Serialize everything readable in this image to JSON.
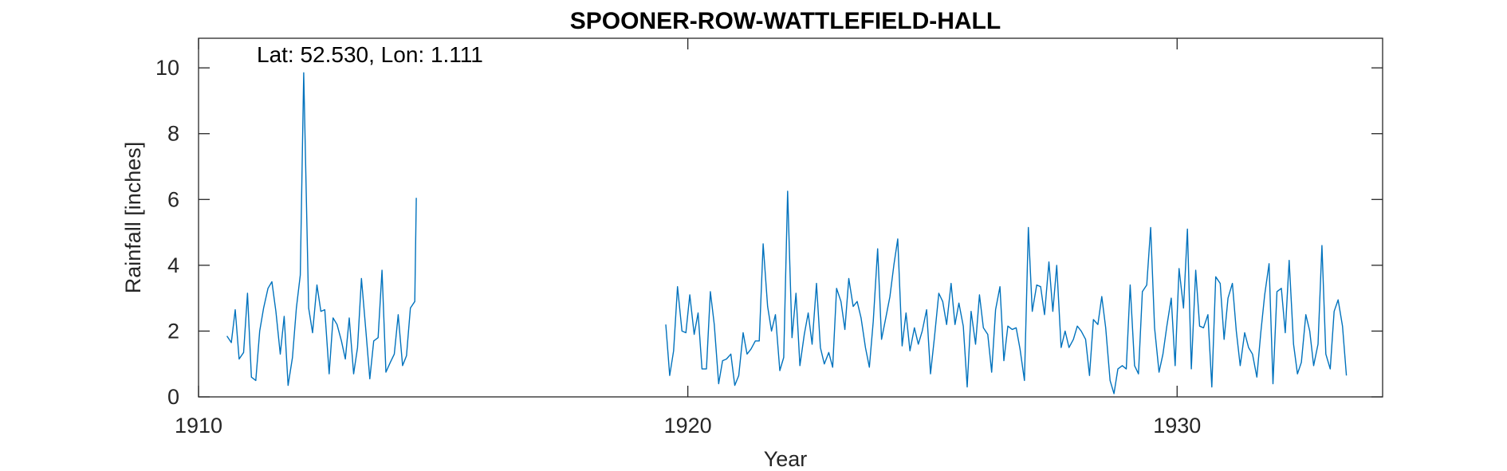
{
  "chart_data": {
    "type": "line",
    "title": "SPOONER-ROW-WATTLEFIELD-HALL",
    "annotation": "Lat: 52.530, Lon: 1.111",
    "xlabel": "Year",
    "ylabel": "Rainfall [inches]",
    "xlim": [
      1910,
      1934.2
    ],
    "ylim": [
      0,
      10.9
    ],
    "xticks": [
      1910,
      1920,
      1930
    ],
    "yticks": [
      0,
      2,
      4,
      6,
      8,
      10
    ],
    "xtick_labels": [
      "1910",
      "1920",
      "1930"
    ],
    "ytick_labels": [
      "0",
      "2",
      "4",
      "6",
      "8",
      "10"
    ],
    "grid": false,
    "box": true,
    "series": [
      {
        "color": "#0072BD",
        "segments": [
          [
            [
              1910.58,
              1.85
            ],
            [
              1910.67,
              1.65
            ],
            [
              1910.75,
              2.65
            ],
            [
              1910.83,
              1.15
            ],
            [
              1910.92,
              1.35
            ],
            [
              1911.0,
              3.15
            ],
            [
              1911.08,
              0.6
            ],
            [
              1911.17,
              0.5
            ],
            [
              1911.25,
              2.0
            ],
            [
              1911.33,
              2.7
            ],
            [
              1911.42,
              3.3
            ],
            [
              1911.5,
              3.5
            ],
            [
              1911.58,
              2.6
            ],
            [
              1911.67,
              1.3
            ],
            [
              1911.75,
              2.45
            ],
            [
              1911.83,
              0.35
            ],
            [
              1911.92,
              1.2
            ],
            [
              1912.0,
              2.7
            ],
            [
              1912.08,
              3.7
            ],
            [
              1912.15,
              9.85
            ],
            [
              1912.25,
              2.7
            ],
            [
              1912.33,
              1.95
            ],
            [
              1912.42,
              3.4
            ],
            [
              1912.5,
              2.6
            ],
            [
              1912.58,
              2.65
            ],
            [
              1912.67,
              0.7
            ],
            [
              1912.75,
              2.4
            ],
            [
              1912.83,
              2.2
            ],
            [
              1912.92,
              1.7
            ],
            [
              1913.0,
              1.15
            ],
            [
              1913.08,
              2.4
            ],
            [
              1913.17,
              0.7
            ],
            [
              1913.25,
              1.5
            ],
            [
              1913.33,
              3.6
            ],
            [
              1913.42,
              2.0
            ],
            [
              1913.5,
              0.55
            ],
            [
              1913.58,
              1.7
            ],
            [
              1913.67,
              1.8
            ],
            [
              1913.75,
              3.85
            ],
            [
              1913.83,
              0.75
            ],
            [
              1913.92,
              1.05
            ],
            [
              1914.0,
              1.3
            ],
            [
              1914.08,
              2.5
            ],
            [
              1914.17,
              0.95
            ],
            [
              1914.25,
              1.25
            ],
            [
              1914.33,
              2.7
            ],
            [
              1914.42,
              2.9
            ],
            [
              1914.45,
              6.05
            ]
          ],
          [
            [
              1919.55,
              2.2
            ],
            [
              1919.63,
              0.65
            ],
            [
              1919.71,
              1.4
            ],
            [
              1919.79,
              3.35
            ],
            [
              1919.88,
              2.0
            ],
            [
              1919.96,
              1.95
            ],
            [
              1920.04,
              3.1
            ],
            [
              1920.13,
              1.9
            ],
            [
              1920.21,
              2.55
            ],
            [
              1920.29,
              0.85
            ],
            [
              1920.38,
              0.85
            ],
            [
              1920.46,
              3.2
            ],
            [
              1920.54,
              2.2
            ],
            [
              1920.63,
              0.4
            ],
            [
              1920.71,
              1.1
            ],
            [
              1920.79,
              1.15
            ],
            [
              1920.88,
              1.3
            ],
            [
              1920.96,
              0.35
            ],
            [
              1921.04,
              0.65
            ],
            [
              1921.13,
              1.95
            ],
            [
              1921.21,
              1.3
            ],
            [
              1921.29,
              1.45
            ],
            [
              1921.38,
              1.7
            ],
            [
              1921.46,
              1.7
            ],
            [
              1921.54,
              4.65
            ],
            [
              1921.63,
              2.75
            ],
            [
              1921.71,
              2.0
            ],
            [
              1921.79,
              2.5
            ],
            [
              1921.88,
              0.8
            ],
            [
              1921.96,
              1.2
            ],
            [
              1922.04,
              6.25
            ],
            [
              1922.13,
              1.8
            ],
            [
              1922.21,
              3.15
            ],
            [
              1922.29,
              0.95
            ],
            [
              1922.38,
              1.9
            ],
            [
              1922.46,
              2.55
            ],
            [
              1922.54,
              1.6
            ],
            [
              1922.63,
              3.45
            ],
            [
              1922.71,
              1.5
            ],
            [
              1922.79,
              1.0
            ],
            [
              1922.88,
              1.35
            ],
            [
              1922.96,
              0.9
            ],
            [
              1923.04,
              3.3
            ],
            [
              1923.13,
              2.9
            ],
            [
              1923.21,
              2.05
            ],
            [
              1923.29,
              3.6
            ],
            [
              1923.38,
              2.75
            ],
            [
              1923.46,
              2.9
            ],
            [
              1923.54,
              2.4
            ],
            [
              1923.63,
              1.5
            ],
            [
              1923.71,
              0.9
            ],
            [
              1923.79,
              2.3
            ],
            [
              1923.88,
              4.5
            ],
            [
              1923.96,
              1.75
            ],
            [
              1924.04,
              2.35
            ],
            [
              1924.13,
              3.05
            ],
            [
              1924.21,
              4.0
            ],
            [
              1924.29,
              4.8
            ],
            [
              1924.38,
              1.55
            ],
            [
              1924.46,
              2.55
            ],
            [
              1924.54,
              1.4
            ],
            [
              1924.63,
              2.1
            ],
            [
              1924.71,
              1.6
            ],
            [
              1924.79,
              2.0
            ],
            [
              1924.88,
              2.65
            ],
            [
              1924.96,
              0.7
            ],
            [
              1925.04,
              1.8
            ],
            [
              1925.13,
              3.15
            ],
            [
              1925.21,
              2.9
            ],
            [
              1925.29,
              2.2
            ],
            [
              1925.38,
              3.45
            ],
            [
              1925.46,
              2.2
            ],
            [
              1925.54,
              2.85
            ],
            [
              1925.63,
              2.15
            ],
            [
              1925.71,
              0.3
            ],
            [
              1925.79,
              2.6
            ],
            [
              1925.88,
              1.6
            ],
            [
              1925.96,
              3.1
            ],
            [
              1926.04,
              2.1
            ],
            [
              1926.13,
              1.9
            ],
            [
              1926.21,
              0.75
            ],
            [
              1926.29,
              2.65
            ],
            [
              1926.38,
              3.35
            ],
            [
              1926.46,
              1.1
            ],
            [
              1926.54,
              2.15
            ],
            [
              1926.63,
              2.05
            ],
            [
              1926.71,
              2.1
            ],
            [
              1926.79,
              1.45
            ],
            [
              1926.88,
              0.5
            ],
            [
              1926.96,
              5.15
            ],
            [
              1927.04,
              2.6
            ],
            [
              1927.13,
              3.4
            ],
            [
              1927.21,
              3.35
            ],
            [
              1927.29,
              2.5
            ],
            [
              1927.38,
              4.1
            ],
            [
              1927.46,
              2.6
            ],
            [
              1927.54,
              4.0
            ],
            [
              1927.63,
              1.5
            ],
            [
              1927.71,
              2.0
            ],
            [
              1927.79,
              1.5
            ],
            [
              1927.88,
              1.75
            ],
            [
              1927.96,
              2.15
            ],
            [
              1928.04,
              2.0
            ],
            [
              1928.13,
              1.75
            ],
            [
              1928.21,
              0.65
            ],
            [
              1928.29,
              2.35
            ],
            [
              1928.38,
              2.2
            ],
            [
              1928.46,
              3.05
            ],
            [
              1928.54,
              2.1
            ],
            [
              1928.63,
              0.5
            ],
            [
              1928.71,
              0.1
            ],
            [
              1928.79,
              0.85
            ],
            [
              1928.88,
              0.95
            ],
            [
              1928.96,
              0.85
            ],
            [
              1929.04,
              3.4
            ],
            [
              1929.13,
              0.95
            ],
            [
              1929.21,
              0.7
            ],
            [
              1929.29,
              3.2
            ],
            [
              1929.38,
              3.4
            ],
            [
              1929.46,
              5.15
            ],
            [
              1929.54,
              2.1
            ],
            [
              1929.63,
              0.75
            ],
            [
              1929.71,
              1.3
            ],
            [
              1929.79,
              2.15
            ],
            [
              1929.88,
              3.0
            ],
            [
              1929.96,
              0.95
            ],
            [
              1930.04,
              3.9
            ],
            [
              1930.13,
              2.7
            ],
            [
              1930.21,
              5.1
            ],
            [
              1930.29,
              0.85
            ],
            [
              1930.38,
              3.85
            ],
            [
              1930.46,
              2.15
            ],
            [
              1930.54,
              2.1
            ],
            [
              1930.63,
              2.5
            ],
            [
              1930.71,
              0.3
            ],
            [
              1930.79,
              3.65
            ],
            [
              1930.88,
              3.45
            ],
            [
              1930.96,
              1.75
            ],
            [
              1931.04,
              3.0
            ],
            [
              1931.13,
              3.45
            ],
            [
              1931.21,
              2.0
            ],
            [
              1931.29,
              0.95
            ],
            [
              1931.38,
              1.95
            ],
            [
              1931.46,
              1.5
            ],
            [
              1931.54,
              1.3
            ],
            [
              1931.63,
              0.6
            ],
            [
              1931.71,
              1.95
            ],
            [
              1931.79,
              3.1
            ],
            [
              1931.88,
              4.05
            ],
            [
              1931.96,
              0.4
            ],
            [
              1932.04,
              3.2
            ],
            [
              1932.13,
              3.3
            ],
            [
              1932.21,
              1.95
            ],
            [
              1932.29,
              4.15
            ],
            [
              1932.38,
              1.6
            ],
            [
              1932.46,
              0.7
            ],
            [
              1932.54,
              1.05
            ],
            [
              1932.63,
              2.5
            ],
            [
              1932.71,
              2.0
            ],
            [
              1932.79,
              0.95
            ],
            [
              1932.88,
              1.6
            ],
            [
              1932.96,
              4.6
            ],
            [
              1933.04,
              1.3
            ],
            [
              1933.13,
              0.85
            ],
            [
              1933.21,
              2.6
            ],
            [
              1933.29,
              2.95
            ],
            [
              1933.38,
              2.15
            ],
            [
              1933.46,
              0.65
            ]
          ]
        ]
      }
    ]
  }
}
